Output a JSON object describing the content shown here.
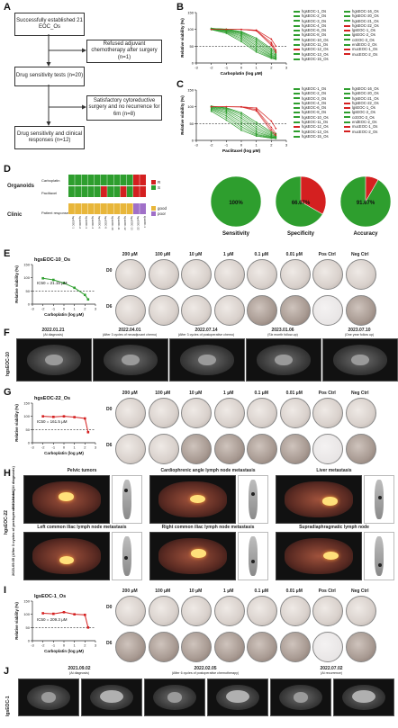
{
  "panels": {
    "A": {
      "label": "A",
      "box1": "Successfully established 21 EOC_Os",
      "side1": "Refused adjuvant chemotherapy after surgery (n=1)",
      "box2": "Drug sensitivity tests (n=20)",
      "side2": "Satisfactory cytoreductive surgery and no recurrence for 6m (n=8)",
      "box3": "Drug sensitivity and clinical responses (n=12)"
    },
    "B": {
      "label": "B",
      "xlabel": "Carboplatin (log μM)",
      "ylabel": "Relative viability (%)"
    },
    "C": {
      "label": "C",
      "xlabel": "Paclitaxel (log μM)",
      "ylabel": "Relative viability (%)"
    },
    "legend": [
      {
        "name": "hgsEOC-1_Os",
        "color": "#2e9e2e"
      },
      {
        "name": "hgsEOC-2_Os",
        "color": "#2e9e2e"
      },
      {
        "name": "hgsEOC-3_Os",
        "color": "#2e9e2e"
      },
      {
        "name": "hgsEOC-4_Os",
        "color": "#2e9e2e"
      },
      {
        "name": "hgsEOC-6_Os",
        "color": "#2e9e2e"
      },
      {
        "name": "hgsEOC-8_Os",
        "color": "#2e9e2e"
      },
      {
        "name": "hgsEOC-10_Os",
        "color": "#2e9e2e"
      },
      {
        "name": "hgsEOC-11_Os",
        "color": "#2e9e2e"
      },
      {
        "name": "hgsEOC-12_Os",
        "color": "#d42020"
      },
      {
        "name": "hgsEOC-13_Os",
        "color": "#2e9e2e"
      },
      {
        "name": "hgsEOC-15_Os",
        "color": "#2e9e2e"
      },
      {
        "name": "hgsEOC-16_Os",
        "color": "#2e9e2e"
      },
      {
        "name": "hgsEOC-20_Os",
        "color": "#2e9e2e"
      },
      {
        "name": "hgsEOC-21_Os",
        "color": "#2e9e2e"
      },
      {
        "name": "hgsEOC-22_Os",
        "color": "#d42020"
      },
      {
        "name": "lgsEOC-1_Os",
        "color": "#d42020"
      },
      {
        "name": "lgsEOC-2_Os",
        "color": "#2e9e2e"
      },
      {
        "name": "ccEOC-3_Os",
        "color": "#2e9e2e"
      },
      {
        "name": "endEOC-2_Os",
        "color": "#2e9e2e"
      },
      {
        "name": "mucEOC-1_Os",
        "color": "#d42020"
      },
      {
        "name": "mucEOC-2_Os",
        "color": "#d42020"
      }
    ],
    "D": {
      "label": "D",
      "row_organoids": "Organoids",
      "row_carboplatin": "Carboplatin",
      "row_paclitaxel": "Paclitaxel",
      "row_clinic": "Clinic",
      "row_response": "Patient response",
      "legend_r": "R",
      "legend_s": "S",
      "legend_good": "good",
      "legend_poor": "poor",
      "pies": [
        {
          "title": "Sensitivity",
          "pct": "100%",
          "value": 1.0
        },
        {
          "title": "Specificity",
          "pct": "66.67%",
          "value": 0.6667
        },
        {
          "title": "Accuracy",
          "pct": "91.67%",
          "value": 0.9167
        }
      ]
    },
    "E": {
      "label": "E",
      "case": "hgsEOC-10_Os",
      "ic50": "IC50 = 21.15 μM",
      "xlabel": "Carboplatin (log μM)",
      "ylabel": "Relative viability (%)"
    },
    "concentrations": [
      "200 μM",
      "100 μM",
      "10 μM",
      "1 μM",
      "0.1 μM",
      "0.01 μM",
      "Pos Ctrl",
      "Neg Ctrl"
    ],
    "day0": "D0",
    "day6": "D6",
    "F": {
      "label": "F",
      "side": "hgsEOC-10",
      "dates": [
        {
          "date": "2022.01.21",
          "note": "(At diagnosis)"
        },
        {
          "date": "2022.04.01",
          "note": "(After 3 cycles of neoadjuvant chemo)"
        },
        {
          "date": "2022.07.14",
          "note": "(After 3 cycles of postoperative chemo)"
        },
        {
          "date": "2023.01.06",
          "note": "(Six month follow-up)"
        },
        {
          "date": "2023.07.10",
          "note": "(One year follow up)"
        }
      ]
    },
    "G": {
      "label": "G",
      "case": "hgsEOC-22_Os",
      "ic50": "IC50 = 161.5 μM",
      "xlabel": "Carboplatin (log μM)",
      "ylabel": "Relative viability (%)"
    },
    "H": {
      "label": "H",
      "side": "hgsEOC-22",
      "date1": "2022.04.14",
      "date1_note": "(At diagnosis)",
      "date2": "2023.09.05",
      "date2_note": "(After 3 cycles of postoperative chemo)",
      "t1": "Pelvic tumors",
      "t2": "Cardiophrenic angle lymph node metastasis",
      "t3": "Liver metastasis",
      "t4": "Left common iliac lymph node metastasis",
      "t5": "Right common iliac lymph node metastasis",
      "t6": "Supradiaphragmatic lymph node"
    },
    "I": {
      "label": "I",
      "case": "lgsEOC-1_Os",
      "ic50": "IC50 = 209.3 μM",
      "xlabel": "Carboplatin (log μM)",
      "ylabel": "Relative viability (%)"
    },
    "J": {
      "label": "J",
      "side": "lgsEOC-1",
      "dates": [
        {
          "date": "2021.09.02",
          "note": "(At diagnosis)"
        },
        {
          "date": "2022.02.05",
          "note": "(After 6 cycles of postoperative chemotherapy)"
        },
        {
          "date": "2022.07.02",
          "note": "(At recurrence)"
        }
      ]
    }
  },
  "chart_data": [
    {
      "type": "line",
      "panel": "E",
      "x": [
        -2,
        -1,
        0,
        1,
        2,
        2.3
      ],
      "series": [
        {
          "values": [
            98,
            92,
            80,
            62,
            35,
            18
          ]
        }
      ],
      "xlim": [
        -3,
        3
      ],
      "ylim": [
        0,
        150
      ],
      "reference_y": 50
    },
    {
      "type": "line",
      "panel": "G",
      "x": [
        -2,
        -1,
        0,
        1,
        2,
        2.3
      ],
      "series": [
        {
          "values": [
            100,
            98,
            100,
            97,
            92,
            40
          ]
        }
      ],
      "xlim": [
        -3,
        3
      ],
      "ylim": [
        0,
        150
      ],
      "reference_y": 50
    },
    {
      "type": "line",
      "panel": "I",
      "x": [
        -2,
        -1,
        0,
        1,
        2,
        2.3
      ],
      "series": [
        {
          "values": [
            104,
            102,
            108,
            100,
            98,
            50
          ]
        }
      ],
      "xlim": [
        -3,
        3
      ],
      "ylim": [
        0,
        150
      ],
      "reference_y": 50
    }
  ]
}
